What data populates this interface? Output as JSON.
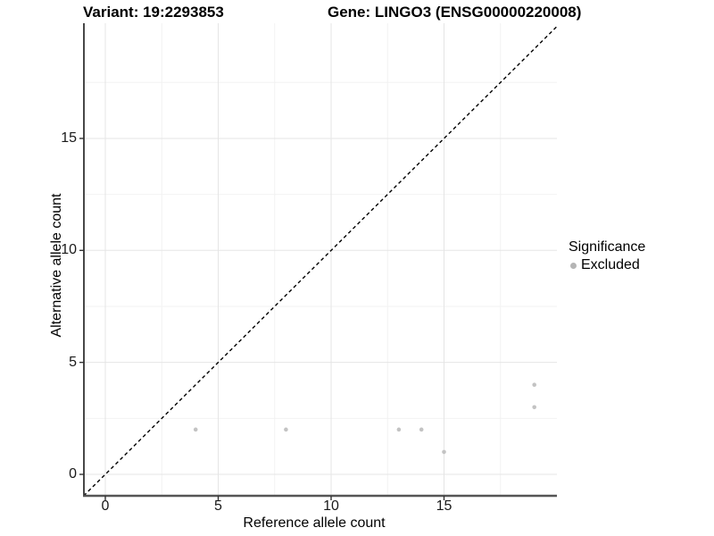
{
  "chart_data": {
    "type": "scatter",
    "titles": {
      "left": "Variant: 19:2293853",
      "right": "Gene: LINGO3 (ENSG00000220008)"
    },
    "xlabel": "Reference allele count",
    "ylabel": "Alternative allele count",
    "x_ticks": [
      0,
      5,
      10,
      15
    ],
    "y_ticks": [
      0,
      5,
      10,
      15
    ],
    "x_minor_ticks": [
      2.5,
      7.5,
      12.5,
      17.5
    ],
    "y_minor_ticks": [
      2.5,
      7.5,
      12.5,
      17.5
    ],
    "xlim": [
      -0.95,
      20.05
    ],
    "ylim": [
      -0.96,
      20.1
    ],
    "grid": true,
    "series": [
      {
        "name": "Excluded",
        "marker": "circle",
        "color": "#c3c3c3",
        "points": [
          {
            "x": 4,
            "y": 2
          },
          {
            "x": 8,
            "y": 2
          },
          {
            "x": 13,
            "y": 2
          },
          {
            "x": 14,
            "y": 2
          },
          {
            "x": 15,
            "y": 1
          },
          {
            "x": 19,
            "y": 4
          },
          {
            "x": 19,
            "y": 3
          }
        ]
      }
    ],
    "identity_line": {
      "shown": true,
      "style": "dashed",
      "color": "#000000",
      "slope": 1,
      "intercept": 0
    },
    "legend": {
      "title": "Significance",
      "position": "right",
      "items": [
        {
          "label": "Excluded",
          "color": "#b5b5b5",
          "marker": "circle"
        }
      ]
    },
    "colors": {
      "major_grid": "#e5e5e5",
      "minor_grid": "#f2f2f2",
      "axis_line_y": "#333333",
      "axis_line_x": "#555555",
      "tick_mark": "#333333",
      "tick_label": "#1a1a1a",
      "point": "#c3c3c3"
    }
  }
}
